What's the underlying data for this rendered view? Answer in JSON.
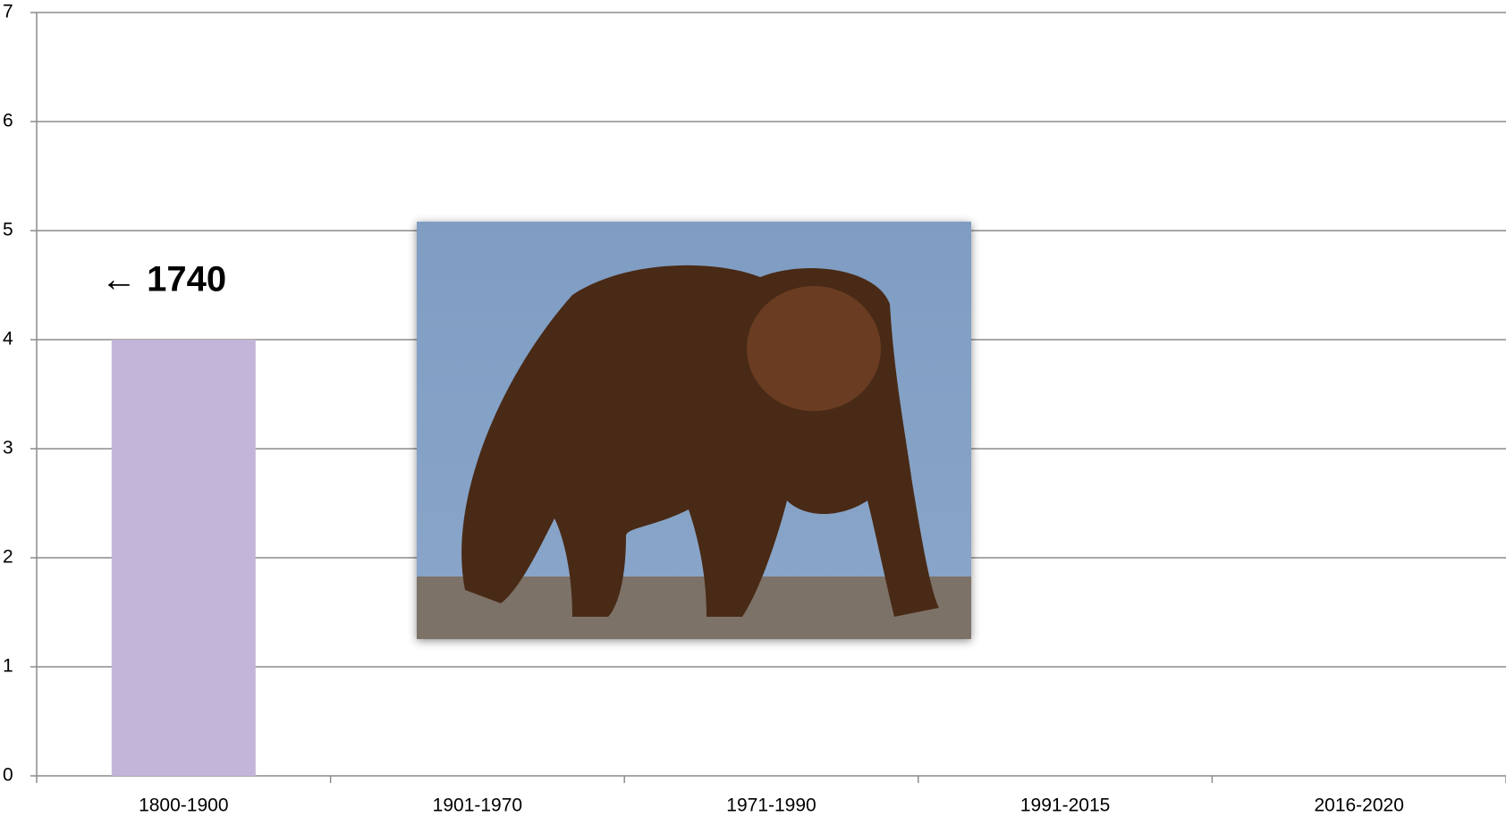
{
  "chart_data": {
    "type": "bar",
    "categories": [
      "1800-1900",
      "1901-1970",
      "1971-1990",
      "1991-2015",
      "2016-2020"
    ],
    "values": [
      4,
      0,
      0,
      0,
      0
    ],
    "color": "#c3b5d9",
    "ylim": [
      0,
      7
    ],
    "yticks": [
      0,
      1,
      2,
      3,
      4,
      5,
      6,
      7
    ],
    "grid": true,
    "annotation": "← 1740"
  }
}
